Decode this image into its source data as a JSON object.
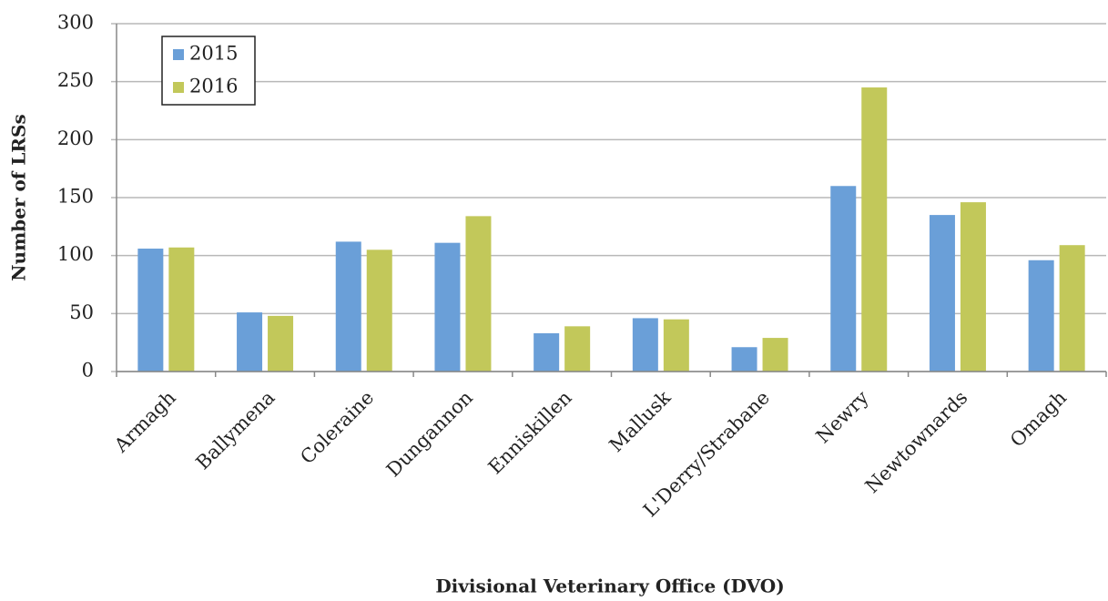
{
  "chart_data": {
    "type": "bar",
    "x_label": "Divisional Veterinary Office (DVO)",
    "y_label": "Number of LRSs",
    "categories": [
      "Armagh",
      "Ballymena",
      "Coleraine",
      "Dungannon",
      "Enniskillen",
      "Mallusk",
      "L'Derry/Strabane",
      "Newry",
      "Newtownards",
      "Omagh"
    ],
    "series": [
      {
        "name": "2015",
        "color": "#6a9fd8",
        "values": [
          106,
          51,
          112,
          111,
          33,
          46,
          21,
          160,
          135,
          96
        ]
      },
      {
        "name": "2016",
        "color": "#c2c85a",
        "values": [
          107,
          48,
          105,
          134,
          39,
          45,
          29,
          245,
          146,
          109
        ]
      }
    ],
    "ylim": [
      0,
      300
    ],
    "yticks": [
      0,
      50,
      100,
      150,
      200,
      250,
      300
    ],
    "grid": true,
    "legend": "top-left"
  }
}
